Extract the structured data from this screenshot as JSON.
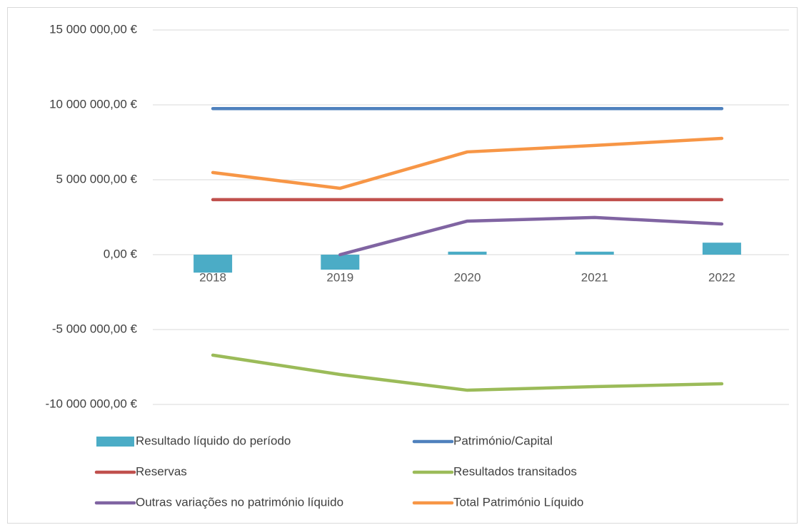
{
  "chart_data": {
    "type": "combo",
    "categories": [
      "2018",
      "2019",
      "2020",
      "2021",
      "2022"
    ],
    "series": [
      {
        "name": "Resultado líquido do período",
        "type": "bar",
        "color": "#4bacc6",
        "values": [
          -1200000,
          -1000000,
          200000,
          200000,
          800000
        ]
      },
      {
        "name": "Património/Capital",
        "type": "line",
        "color": "#4f81bd",
        "values": [
          9750000,
          9750000,
          9750000,
          9750000,
          9750000
        ]
      },
      {
        "name": "Reservas",
        "type": "line",
        "color": "#c0504d",
        "values": [
          3670000,
          3670000,
          3670000,
          3670000,
          3670000
        ]
      },
      {
        "name": "Resultados transitados",
        "type": "line",
        "color": "#9bbb59",
        "values": [
          -6710000,
          -8000000,
          -9050000,
          -8810000,
          -8620000
        ]
      },
      {
        "name": "Outras variações no património líquido",
        "type": "line",
        "color": "#8064a2",
        "values": [
          null,
          0,
          2240000,
          2480000,
          2050000
        ]
      },
      {
        "name": "Total Património Líquido",
        "type": "line",
        "color": "#f79646",
        "values": [
          5480000,
          4430000,
          6860000,
          7290000,
          7760000
        ]
      }
    ],
    "ylim": [
      -10000000,
      15000000
    ],
    "yticks": [
      {
        "value": -10000000,
        "label": "-10 000 000,00 €"
      },
      {
        "value": -5000000,
        "label": "-5 000 000,00 €"
      },
      {
        "value": 0,
        "label": "0,00 €"
      },
      {
        "value": 5000000,
        "label": "5 000 000,00 €"
      },
      {
        "value": 10000000,
        "label": "10 000 000,00 €"
      },
      {
        "value": 15000000,
        "label": "15 000 000,00 €"
      }
    ],
    "grid": true,
    "legend": "bottom"
  }
}
